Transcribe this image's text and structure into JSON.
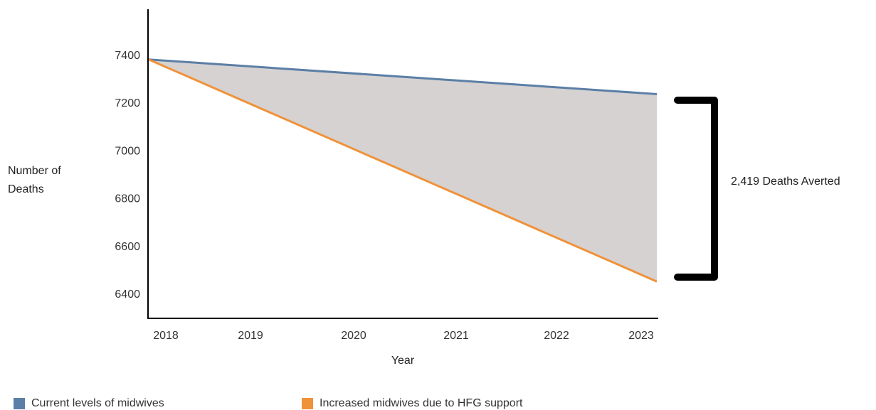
{
  "chart_data": {
    "type": "area",
    "x": [
      "2018",
      "2019",
      "2020",
      "2021",
      "2022",
      "2023"
    ],
    "xlabel": "Year",
    "ylabel_lines": [
      "Number of",
      "Deaths"
    ],
    "y_ticks": [
      7400,
      7200,
      7000,
      6800,
      6600,
      6400
    ],
    "ylim": [
      6300,
      7600
    ],
    "series": [
      {
        "name": "Current levels of midwives",
        "color": "#5b7fa6",
        "start": 7380,
        "end": 7235
      },
      {
        "name": "Increased midwives due to HFG support",
        "color": "#f0923a",
        "start": 7380,
        "end": 6450
      }
    ],
    "fill_color": "#d6d2d2",
    "annotation": "2,419 Deaths Averted",
    "grid": false,
    "legend_position": "bottom"
  }
}
